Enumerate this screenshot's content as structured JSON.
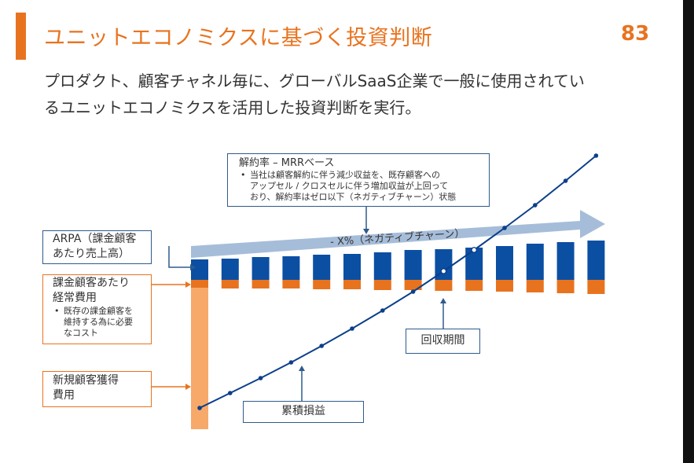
{
  "header": {
    "title": "ユニットエコノミクスに基づく投資判断",
    "page_number": "83"
  },
  "description": {
    "line1": "プロダクト、顧客チャネル毎に、グローバルSaaS企業で一般に使用されてい",
    "line2": "るユニットエコノミクスを活用した投資判断を実行。"
  },
  "diagram": {
    "churn_box": {
      "title": "解約率 – MRRベース",
      "bullet_lines": [
        "当社は顧客解約に伴う減少収益を、既存顧客への",
        "アップセル / クロスセルに伴う増加収益が上回って",
        "おり、解約率はゼロ以下（ネガティブチャーン）状態"
      ]
    },
    "arrow_label": "- X%（ネガティブチャーン）",
    "arpa_box": {
      "line1": "ARPA（課金顧客",
      "line2": "あたり売上高）"
    },
    "cost_box": {
      "line1": "課金顧客あたり",
      "line2": "経常費用",
      "bullet_lines": [
        "既存の課金顧客を",
        "維持する為に必要",
        "なコスト"
      ]
    },
    "acq_box": {
      "line1": "新規顧客獲得",
      "line2": "費用"
    },
    "payback_box": {
      "label": "回収期間"
    },
    "cumulative_box": {
      "label": "累積損益"
    },
    "colors": {
      "revenue_bar": "#0B4FA3",
      "cost_bar": "#E8731F",
      "acquisition_bar": "#F7A96A",
      "profit_line": "#0B3F8A",
      "churn_arrow": "#A6BDD9"
    }
  }
}
